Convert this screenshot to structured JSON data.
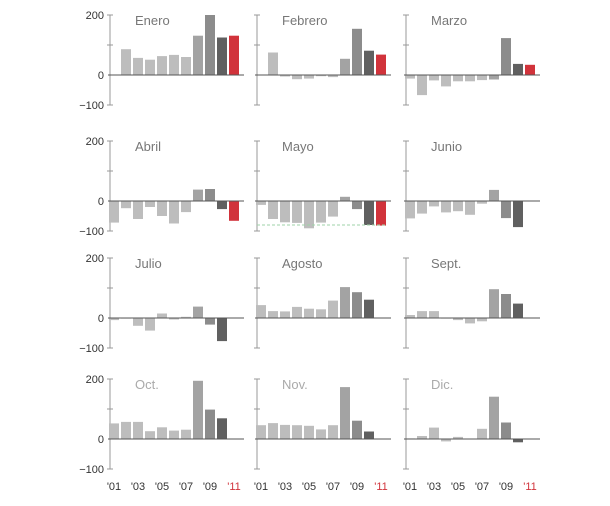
{
  "chart_data": {
    "type": "bar",
    "layout": "small-multiples 4x3",
    "years": [
      "'01",
      "'02",
      "'03",
      "'04",
      "'05",
      "'06",
      "'07",
      "'08",
      "'09",
      "'10",
      "'11"
    ],
    "x_tick_labels": [
      "'01",
      "'03",
      "'05",
      "'07",
      "'09",
      "'11"
    ],
    "y_tick_labels": [
      "200",
      "0",
      "−100"
    ],
    "ylim": [
      -100,
      200
    ],
    "grid": false,
    "colors": {
      "2001-2007": "#bdbdbd",
      "2008": "#a3a3a3",
      "2009": "#8c8c8c",
      "2010": "#606060",
      "2011": "#d1333b",
      "axis": "#999999",
      "zero_line": "#555555",
      "reference_line": "#9fd3a8",
      "title_dark": "#777777",
      "title_light": "#aaaaaa"
    },
    "panels": [
      {
        "title": "Enero",
        "values": [
          null,
          86,
          57,
          51,
          63,
          67,
          60,
          131,
          200,
          125,
          131
        ]
      },
      {
        "title": "Febrero",
        "values": [
          null,
          75,
          -5,
          -14,
          -12,
          -4,
          -7,
          54,
          154,
          81,
          68
        ]
      },
      {
        "title": "Marzo",
        "values": [
          -12,
          -67,
          -18,
          -38,
          -21,
          -21,
          -17,
          -15,
          123,
          37,
          34
        ]
      },
      {
        "title": "Abril",
        "values": [
          -72,
          -24,
          -60,
          -20,
          -50,
          -75,
          -37,
          38,
          40,
          -27,
          -66
        ]
      },
      {
        "title": "Mayo",
        "values": [
          -13,
          -60,
          -71,
          -73,
          -91,
          -72,
          -52,
          14,
          -27,
          -80,
          -82
        ],
        "reference_line": -80
      },
      {
        "title": "Junio",
        "values": [
          -58,
          -42,
          -18,
          -38,
          -34,
          -46,
          -9,
          37,
          -57,
          -87,
          null
        ]
      },
      {
        "title": "Julio",
        "values": [
          -7,
          -1,
          -26,
          -42,
          15,
          -5,
          4,
          38,
          -22,
          -77,
          null
        ]
      },
      {
        "title": "Agosto",
        "values": [
          43,
          23,
          22,
          37,
          31,
          29,
          58,
          103,
          86,
          61,
          null
        ]
      },
      {
        "title": "Sept.",
        "values": [
          10,
          23,
          23,
          0,
          -7,
          -18,
          -11,
          96,
          80,
          48,
          null
        ]
      },
      {
        "title": "Oct.",
        "values": [
          52,
          57,
          57,
          26,
          39,
          28,
          31,
          194,
          98,
          69,
          null
        ],
        "muted_title": true
      },
      {
        "title": "Nov.",
        "values": [
          46,
          53,
          47,
          46,
          44,
          32,
          46,
          173,
          61,
          25,
          null
        ],
        "muted_title": true
      },
      {
        "title": "Dic.",
        "values": [
          2,
          10,
          38,
          -8,
          7,
          null,
          34,
          141,
          55,
          -11,
          null
        ],
        "muted_title": true
      }
    ]
  }
}
